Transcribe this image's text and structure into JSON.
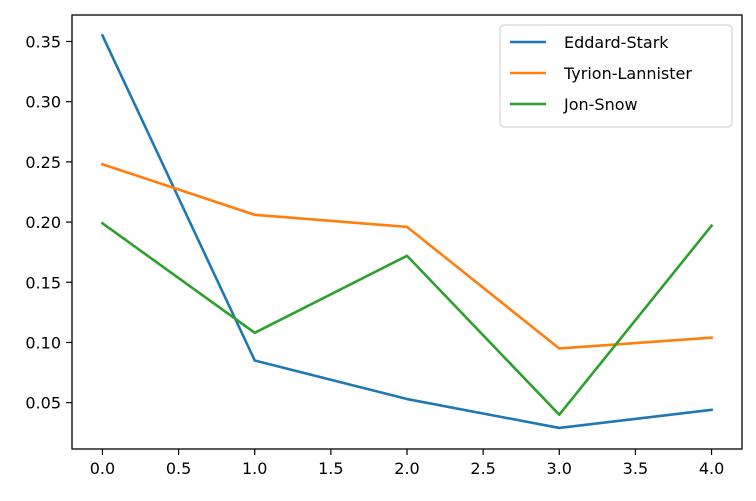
{
  "chart_data": {
    "type": "line",
    "title": "",
    "xlabel": "",
    "ylabel": "",
    "x": [
      0,
      1,
      2,
      3,
      4
    ],
    "xlim": [
      -0.2,
      4.2
    ],
    "ylim": [
      0.0115,
      0.372
    ],
    "xticks": [
      "0.0",
      "0.5",
      "1.0",
      "1.5",
      "2.0",
      "2.5",
      "3.0",
      "3.5",
      "4.0"
    ],
    "yticks": [
      "0.05",
      "0.10",
      "0.15",
      "0.20",
      "0.25",
      "0.30",
      "0.35"
    ],
    "grid": false,
    "legend_position": "top-right",
    "series": [
      {
        "name": "Eddard-Stark",
        "color": "#1f77b4",
        "values": [
          0.355,
          0.085,
          0.053,
          0.029,
          0.044
        ]
      },
      {
        "name": "Tyrion-Lannister",
        "color": "#ff7f0e",
        "values": [
          0.248,
          0.206,
          0.196,
          0.095,
          0.104
        ]
      },
      {
        "name": "Jon-Snow",
        "color": "#2ca02c",
        "values": [
          0.199,
          0.108,
          0.172,
          0.04,
          0.197
        ]
      }
    ]
  }
}
